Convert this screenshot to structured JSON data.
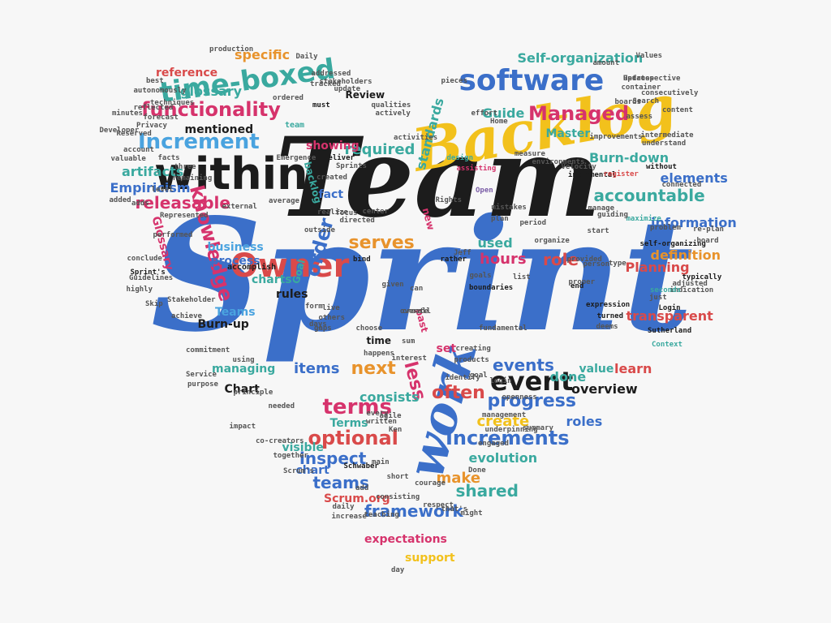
{
  "palette": {
    "black": "#1c1c1c",
    "blue": "#3b6fc9",
    "yellow": "#f2c11c",
    "red": "#d94a4a",
    "teal": "#3aa99f",
    "pink": "#d6336c",
    "lightblue": "#4aa3df",
    "green": "#58b368",
    "orange": "#e8932c",
    "purple": "#7b5ea7",
    "gray": "#555555"
  },
  "words": [
    {
      "text": "Sprint",
      "color": "blue",
      "rotate": 0
    },
    {
      "text": "Team",
      "color": "black",
      "rotate": 0
    },
    {
      "text": "Backlog",
      "color": "yellow",
      "rotate": -10
    },
    {
      "text": "work",
      "color": "blue",
      "rotate": -75
    },
    {
      "text": "within",
      "color": "black",
      "rotate": 0
    },
    {
      "text": "Owner",
      "color": "red",
      "rotate": 0
    },
    {
      "text": "time-boxed",
      "color": "teal",
      "rotate": -8
    },
    {
      "text": "software",
      "color": "blue",
      "rotate": 0
    },
    {
      "text": "Increment",
      "color": "lightblue",
      "rotate": 0
    },
    {
      "text": "functionality",
      "color": "pink",
      "rotate": 0
    },
    {
      "text": "knowledge",
      "color": "pink",
      "rotate": 75
    },
    {
      "text": "event",
      "color": "black",
      "rotate": 0
    },
    {
      "text": "terms",
      "color": "pink",
      "rotate": 0
    },
    {
      "text": "optional",
      "color": "red",
      "rotate": 0
    },
    {
      "text": "Increments",
      "color": "blue",
      "rotate": 0
    },
    {
      "text": "Managed",
      "color": "pink",
      "rotate": 0
    },
    {
      "text": "accountable",
      "color": "teal",
      "rotate": 0
    },
    {
      "text": "serves",
      "color": "orange",
      "rotate": 0
    },
    {
      "text": "order",
      "color": "blue",
      "rotate": -75
    },
    {
      "text": "required",
      "color": "teal",
      "rotate": 0
    },
    {
      "text": "hours",
      "color": "pink",
      "rotate": 0
    },
    {
      "text": "role",
      "color": "red",
      "rotate": 0
    },
    {
      "text": "used",
      "color": "teal",
      "rotate": 0
    },
    {
      "text": "releasable",
      "color": "pink",
      "rotate": 0
    },
    {
      "text": "artifacts",
      "color": "teal",
      "rotate": 0
    },
    {
      "text": "Empiricism",
      "color": "blue",
      "rotate": 0
    },
    {
      "text": "glossary",
      "color": "teal",
      "rotate": 0
    },
    {
      "text": "reference",
      "color": "red",
      "rotate": 0
    },
    {
      "text": "specific",
      "color": "orange",
      "rotate": 0
    },
    {
      "text": "Self-organization",
      "color": "teal",
      "rotate": 0
    },
    {
      "text": "Master",
      "color": "teal",
      "rotate": 0
    },
    {
      "text": "Guide",
      "color": "teal",
      "rotate": 0
    },
    {
      "text": "Burn-down",
      "color": "teal",
      "rotate": 0
    },
    {
      "text": "elements",
      "color": "blue",
      "rotate": 0
    },
    {
      "text": "information",
      "color": "blue",
      "rotate": 0
    },
    {
      "text": "definition",
      "color": "orange",
      "rotate": 0
    },
    {
      "text": "Planning",
      "color": "red",
      "rotate": 0
    },
    {
      "text": "transparent",
      "color": "red",
      "rotate": 0
    },
    {
      "text": "learn",
      "color": "red",
      "rotate": 0
    },
    {
      "text": "value",
      "color": "teal",
      "rotate": 0
    },
    {
      "text": "overview",
      "color": "black",
      "rotate": 0
    },
    {
      "text": "done",
      "color": "teal",
      "rotate": 0
    },
    {
      "text": "progress",
      "color": "blue",
      "rotate": 0
    },
    {
      "text": "events",
      "color": "blue",
      "rotate": 0
    },
    {
      "text": "often",
      "color": "red",
      "rotate": 0
    },
    {
      "text": "create",
      "color": "yellow",
      "rotate": 0
    },
    {
      "text": "roles",
      "color": "blue",
      "rotate": 0
    },
    {
      "text": "next",
      "color": "orange",
      "rotate": 0
    },
    {
      "text": "less",
      "color": "pink",
      "rotate": 75
    },
    {
      "text": "items",
      "color": "blue",
      "rotate": 0
    },
    {
      "text": "consists",
      "color": "teal",
      "rotate": 0
    },
    {
      "text": "inspect",
      "color": "blue",
      "rotate": 0
    },
    {
      "text": "teams",
      "color": "blue",
      "rotate": 0
    },
    {
      "text": "make",
      "color": "orange",
      "rotate": 0
    },
    {
      "text": "shared",
      "color": "teal",
      "rotate": 0
    },
    {
      "text": "framework",
      "color": "blue",
      "rotate": 0
    },
    {
      "text": "expectations",
      "color": "pink",
      "rotate": 0
    },
    {
      "text": "support",
      "color": "yellow",
      "rotate": 0
    },
    {
      "text": "evolution",
      "color": "teal",
      "rotate": 0
    },
    {
      "text": "business",
      "color": "lightblue",
      "rotate": 0
    },
    {
      "text": "process",
      "color": "blue",
      "rotate": 0
    },
    {
      "text": "charts",
      "color": "teal",
      "rotate": 0
    },
    {
      "text": "rules",
      "color": "black",
      "rotate": 0
    },
    {
      "text": "Teams",
      "color": "lightblue",
      "rotate": 0
    },
    {
      "text": "Burn-up",
      "color": "black",
      "rotate": 0
    },
    {
      "text": "managing",
      "color": "teal",
      "rotate": 0
    },
    {
      "text": "Chart",
      "color": "black",
      "rotate": 0
    },
    {
      "text": "time",
      "color": "black",
      "rotate": 0
    },
    {
      "text": "set",
      "color": "pink",
      "rotate": 0
    },
    {
      "text": "Terms",
      "color": "teal",
      "rotate": 0
    },
    {
      "text": "visible",
      "color": "teal",
      "rotate": 0
    },
    {
      "text": "chart",
      "color": "blue",
      "rotate": 0
    },
    {
      "text": "Scrum.org",
      "color": "red",
      "rotate": 0
    },
    {
      "text": "Glossary",
      "color": "pink",
      "rotate": 75
    },
    {
      "text": "mentioned",
      "color": "black",
      "rotate": 0
    },
    {
      "text": "showing",
      "color": "pink",
      "rotate": 0
    },
    {
      "text": "standards",
      "color": "teal",
      "rotate": -75
    },
    {
      "text": "backlog",
      "color": "teal",
      "rotate": 75
    },
    {
      "text": "fact",
      "color": "blue",
      "rotate": 0
    },
    {
      "text": "Review",
      "color": "black",
      "rotate": 0
    },
    {
      "text": "new",
      "color": "pink",
      "rotate": 75
    },
    {
      "text": "Goal",
      "color": "teal",
      "rotate": -75
    },
    {
      "text": "past",
      "color": "pink",
      "rotate": 75
    },
    {
      "text": "accomplish",
      "color": "black",
      "rotate": 0
    },
    {
      "text": "must",
      "color": "black",
      "rotate": 0
    },
    {
      "text": "team",
      "color": "teal",
      "rotate": 0
    },
    {
      "text": "deliver",
      "color": "black",
      "rotate": 0
    },
    {
      "text": "design",
      "color": "teal",
      "rotate": 0
    },
    {
      "text": "effort",
      "color": "gray",
      "rotate": 0
    },
    {
      "text": "Home",
      "color": "gray",
      "rotate": 0
    },
    {
      "text": "Velocity",
      "color": "gray",
      "rotate": 0
    },
    {
      "text": "environments",
      "color": "gray",
      "rotate": 0
    },
    {
      "text": "measure",
      "color": "gray",
      "rotate": 0
    },
    {
      "text": "assisting",
      "color": "pink",
      "rotate": 0
    },
    {
      "text": "Open",
      "color": "purple",
      "rotate": 0
    },
    {
      "text": "incremental",
      "color": "black",
      "rotate": 0
    },
    {
      "text": "register",
      "color": "red",
      "rotate": 0
    },
    {
      "text": "without",
      "color": "black",
      "rotate": 0
    },
    {
      "text": "connected",
      "color": "gray",
      "rotate": 0
    },
    {
      "text": "maximize",
      "color": "teal",
      "rotate": 0
    },
    {
      "text": "problem",
      "color": "gray",
      "rotate": 0
    },
    {
      "text": "self-organizing",
      "color": "black",
      "rotate": 0
    },
    {
      "text": "re-plan",
      "color": "gray",
      "rotate": 0
    },
    {
      "text": "board",
      "color": "gray",
      "rotate": 0
    },
    {
      "text": "typically",
      "color": "black",
      "rotate": 0
    },
    {
      "text": "adjusted",
      "color": "gray",
      "rotate": 0
    },
    {
      "text": "indication",
      "color": "gray",
      "rotate": 0
    },
    {
      "text": "just",
      "color": "gray",
      "rotate": 0
    },
    {
      "text": "Login",
      "color": "black",
      "rotate": 0
    },
    {
      "text": "seconds",
      "color": "teal",
      "rotate": 0
    },
    {
      "text": "Sutherland",
      "color": "black",
      "rotate": 0
    },
    {
      "text": "Context",
      "color": "teal",
      "rotate": 0
    },
    {
      "text": "expression",
      "color": "black",
      "rotate": 0
    },
    {
      "text": "turned",
      "color": "black",
      "rotate": 0
    },
    {
      "text": "deems",
      "color": "gray",
      "rotate": 0
    },
    {
      "text": "proper",
      "color": "gray",
      "rotate": 0
    },
    {
      "text": "provided",
      "color": "gray",
      "rotate": 0
    },
    {
      "text": "person",
      "color": "gray",
      "rotate": 0
    },
    {
      "text": "type",
      "color": "gray",
      "rotate": 0
    },
    {
      "text": "start",
      "color": "gray",
      "rotate": 0
    },
    {
      "text": "guiding",
      "color": "gray",
      "rotate": 0
    },
    {
      "text": "manage",
      "color": "gray",
      "rotate": 0
    },
    {
      "text": "organize",
      "color": "gray",
      "rotate": 0
    },
    {
      "text": "period",
      "color": "gray",
      "rotate": 0
    },
    {
      "text": "mistakes",
      "color": "gray",
      "rotate": 0
    },
    {
      "text": "plan",
      "color": "gray",
      "rotate": 0
    },
    {
      "text": "Rights",
      "color": "gray",
      "rotate": 0
    },
    {
      "text": "rather",
      "color": "black",
      "rotate": 0
    },
    {
      "text": "boundaries",
      "color": "black",
      "rotate": 0
    },
    {
      "text": "goals",
      "color": "gray",
      "rotate": 0
    },
    {
      "text": "list",
      "color": "gray",
      "rotate": 0
    },
    {
      "text": "can",
      "color": "gray",
      "rotate": 0
    },
    {
      "text": "fundamental",
      "color": "gray",
      "rotate": 0
    },
    {
      "text": "choose",
      "color": "gray",
      "rotate": 0
    },
    {
      "text": "days",
      "color": "gray",
      "rotate": 0
    },
    {
      "text": "gaps",
      "color": "gray",
      "rotate": 0
    },
    {
      "text": "others",
      "color": "gray",
      "rotate": 0
    },
    {
      "text": "form",
      "color": "gray",
      "rotate": 0
    },
    {
      "text": "live",
      "color": "gray",
      "rotate": 0
    },
    {
      "text": "given",
      "color": "gray",
      "rotate": 0
    },
    {
      "text": "bind",
      "color": "black",
      "rotate": 0
    },
    {
      "text": "Jeff",
      "color": "gray",
      "rotate": 0
    },
    {
      "text": "outside",
      "color": "gray",
      "rotate": 0
    },
    {
      "text": "directed",
      "color": "gray",
      "rotate": 0
    },
    {
      "text": "realize",
      "color": "gray",
      "rotate": 0
    },
    {
      "text": "focus",
      "color": "gray",
      "rotate": 0
    },
    {
      "text": "center",
      "color": "gray",
      "rotate": 0
    },
    {
      "text": "average",
      "color": "gray",
      "rotate": 0
    },
    {
      "text": "external",
      "color": "gray",
      "rotate": 0
    },
    {
      "text": "Represented",
      "color": "gray",
      "rotate": 0
    },
    {
      "text": "performed",
      "color": "gray",
      "rotate": 0
    },
    {
      "text": "conclude",
      "color": "gray",
      "rotate": 0
    },
    {
      "text": "Sprint's",
      "color": "black",
      "rotate": 0
    },
    {
      "text": "Guidelines",
      "color": "gray",
      "rotate": 0
    },
    {
      "text": "highly",
      "color": "gray",
      "rotate": 0
    },
    {
      "text": "Skip",
      "color": "gray",
      "rotate": 0
    },
    {
      "text": "Stakeholder",
      "color": "gray",
      "rotate": 0
    },
    {
      "text": "achieve",
      "color": "gray",
      "rotate": 0
    },
    {
      "text": "commitment",
      "color": "gray",
      "rotate": 0
    },
    {
      "text": "purpose",
      "color": "gray",
      "rotate": 0
    },
    {
      "text": "Service",
      "color": "gray",
      "rotate": 0
    },
    {
      "text": "principle",
      "color": "gray",
      "rotate": 0
    },
    {
      "text": "impact",
      "color": "gray",
      "rotate": 0
    },
    {
      "text": "needed",
      "color": "gray",
      "rotate": 0
    },
    {
      "text": "co-creators",
      "color": "gray",
      "rotate": 0
    },
    {
      "text": "together",
      "color": "gray",
      "rotate": 0
    },
    {
      "text": "Scrum's",
      "color": "gray",
      "rotate": 0
    },
    {
      "text": "Schwaber",
      "color": "black",
      "rotate": 0
    },
    {
      "text": "main",
      "color": "gray",
      "rotate": 0
    },
    {
      "text": "Ken",
      "color": "gray",
      "rotate": 0
    },
    {
      "text": "agile",
      "color": "gray",
      "rotate": 0
    },
    {
      "text": "written",
      "color": "gray",
      "rotate": 0
    },
    {
      "text": "every",
      "color": "gray",
      "rotate": 0
    },
    {
      "text": "add",
      "color": "gray",
      "rotate": 0
    },
    {
      "text": "short",
      "color": "gray",
      "rotate": 0
    },
    {
      "text": "courage",
      "color": "gray",
      "rotate": 0
    },
    {
      "text": "respect",
      "color": "gray",
      "rotate": 0
    },
    {
      "text": "that's",
      "color": "gray",
      "rotate": 0
    },
    {
      "text": "might",
      "color": "gray",
      "rotate": 0
    },
    {
      "text": "consisting",
      "color": "gray",
      "rotate": 0
    },
    {
      "text": "daily",
      "color": "gray",
      "rotate": 0
    },
    {
      "text": "increase",
      "color": "gray",
      "rotate": 0
    },
    {
      "text": "teaching",
      "color": "gray",
      "rotate": 0
    },
    {
      "text": "Done",
      "color": "gray",
      "rotate": 0
    },
    {
      "text": "engaged",
      "color": "gray",
      "rotate": 0
    },
    {
      "text": "underpinning",
      "color": "gray",
      "rotate": 0
    },
    {
      "text": "management",
      "color": "gray",
      "rotate": 0
    },
    {
      "text": "openness",
      "color": "gray",
      "rotate": 0
    },
    {
      "text": "login",
      "color": "gray",
      "rotate": 0
    },
    {
      "text": "goal",
      "color": "gray",
      "rotate": 0
    },
    {
      "text": "interest",
      "color": "gray",
      "rotate": 0
    },
    {
      "text": "happens",
      "color": "gray",
      "rotate": 0
    },
    {
      "text": "sum",
      "color": "gray",
      "rotate": 0
    },
    {
      "text": "day",
      "color": "gray",
      "rotate": 0
    },
    {
      "text": "end",
      "color": "black",
      "rotate": 0
    },
    {
      "text": "amount",
      "color": "gray",
      "rotate": 0
    },
    {
      "text": "Values",
      "color": "gray",
      "rotate": 0
    },
    {
      "text": "Updates",
      "color": "gray",
      "rotate": 0
    },
    {
      "text": "container",
      "color": "gray",
      "rotate": 0
    },
    {
      "text": "Retrospective",
      "color": "gray",
      "rotate": 0
    },
    {
      "text": "consecutively",
      "color": "gray",
      "rotate": 0
    },
    {
      "text": "Search",
      "color": "gray",
      "rotate": 0
    },
    {
      "text": "content",
      "color": "gray",
      "rotate": 0
    },
    {
      "text": "intermediate",
      "color": "gray",
      "rotate": 0
    },
    {
      "text": "understand",
      "color": "gray",
      "rotate": 0
    },
    {
      "text": "production",
      "color": "gray",
      "rotate": 0
    },
    {
      "text": "Daily",
      "color": "gray",
      "rotate": 0
    },
    {
      "text": "addressed",
      "color": "gray",
      "rotate": 0
    },
    {
      "text": "stakeholders",
      "color": "gray",
      "rotate": 0
    },
    {
      "text": "tracked",
      "color": "gray",
      "rotate": 0
    },
    {
      "text": "update",
      "color": "gray",
      "rotate": 0
    },
    {
      "text": "pieces",
      "color": "gray",
      "rotate": 0
    },
    {
      "text": "best",
      "color": "gray",
      "rotate": 0
    },
    {
      "text": "autonomously",
      "color": "gray",
      "rotate": 0
    },
    {
      "text": "reflected",
      "color": "gray",
      "rotate": 0
    },
    {
      "text": "techniques",
      "color": "gray",
      "rotate": 0
    },
    {
      "text": "ordered",
      "color": "gray",
      "rotate": 0
    },
    {
      "text": "forecast",
      "color": "gray",
      "rotate": 0
    },
    {
      "text": "Privacy",
      "color": "gray",
      "rotate": 0
    },
    {
      "text": "account",
      "color": "gray",
      "rotate": 0
    },
    {
      "text": "valuable",
      "color": "gray",
      "rotate": 0
    },
    {
      "text": "Developer",
      "color": "gray",
      "rotate": 0
    },
    {
      "text": "minutes",
      "color": "gray",
      "rotate": 0
    },
    {
      "text": "facts",
      "color": "gray",
      "rotate": 0
    },
    {
      "text": "three",
      "color": "gray",
      "rotate": 0
    },
    {
      "text": "remaining",
      "color": "gray",
      "rotate": 0
    },
    {
      "text": "level",
      "color": "gray",
      "rotate": 0
    },
    {
      "text": "adds",
      "color": "gray",
      "rotate": 0
    },
    {
      "text": "added",
      "color": "gray",
      "rotate": 0
    },
    {
      "text": "Reserved",
      "color": "gray",
      "rotate": 0
    },
    {
      "text": "Sprints",
      "color": "gray",
      "rotate": 0
    },
    {
      "text": "Emergence",
      "color": "gray",
      "rotate": 0
    },
    {
      "text": "qualities",
      "color": "gray",
      "rotate": 0
    },
    {
      "text": "activities",
      "color": "gray",
      "rotate": 0
    },
    {
      "text": "created",
      "color": "gray",
      "rotate": 0
    },
    {
      "text": "actively",
      "color": "gray",
      "rotate": 0
    },
    {
      "text": "boards",
      "color": "gray",
      "rotate": 0
    },
    {
      "text": "assess",
      "color": "gray",
      "rotate": 0
    },
    {
      "text": "improvements",
      "color": "gray",
      "rotate": 0
    },
    {
      "text": "identify",
      "color": "gray",
      "rotate": 0
    },
    {
      "text": "products",
      "color": "gray",
      "rotate": 0
    },
    {
      "text": "creating",
      "color": "gray",
      "rotate": 0
    },
    {
      "text": "summary",
      "color": "gray",
      "rotate": 0
    },
    {
      "text": "using",
      "color": "gray",
      "rotate": 0
    },
    {
      "text": "create",
      "color": "gray",
      "rotate": 0
    },
    {
      "text": "overall",
      "color": "gray",
      "rotate": 0
    }
  ]
}
